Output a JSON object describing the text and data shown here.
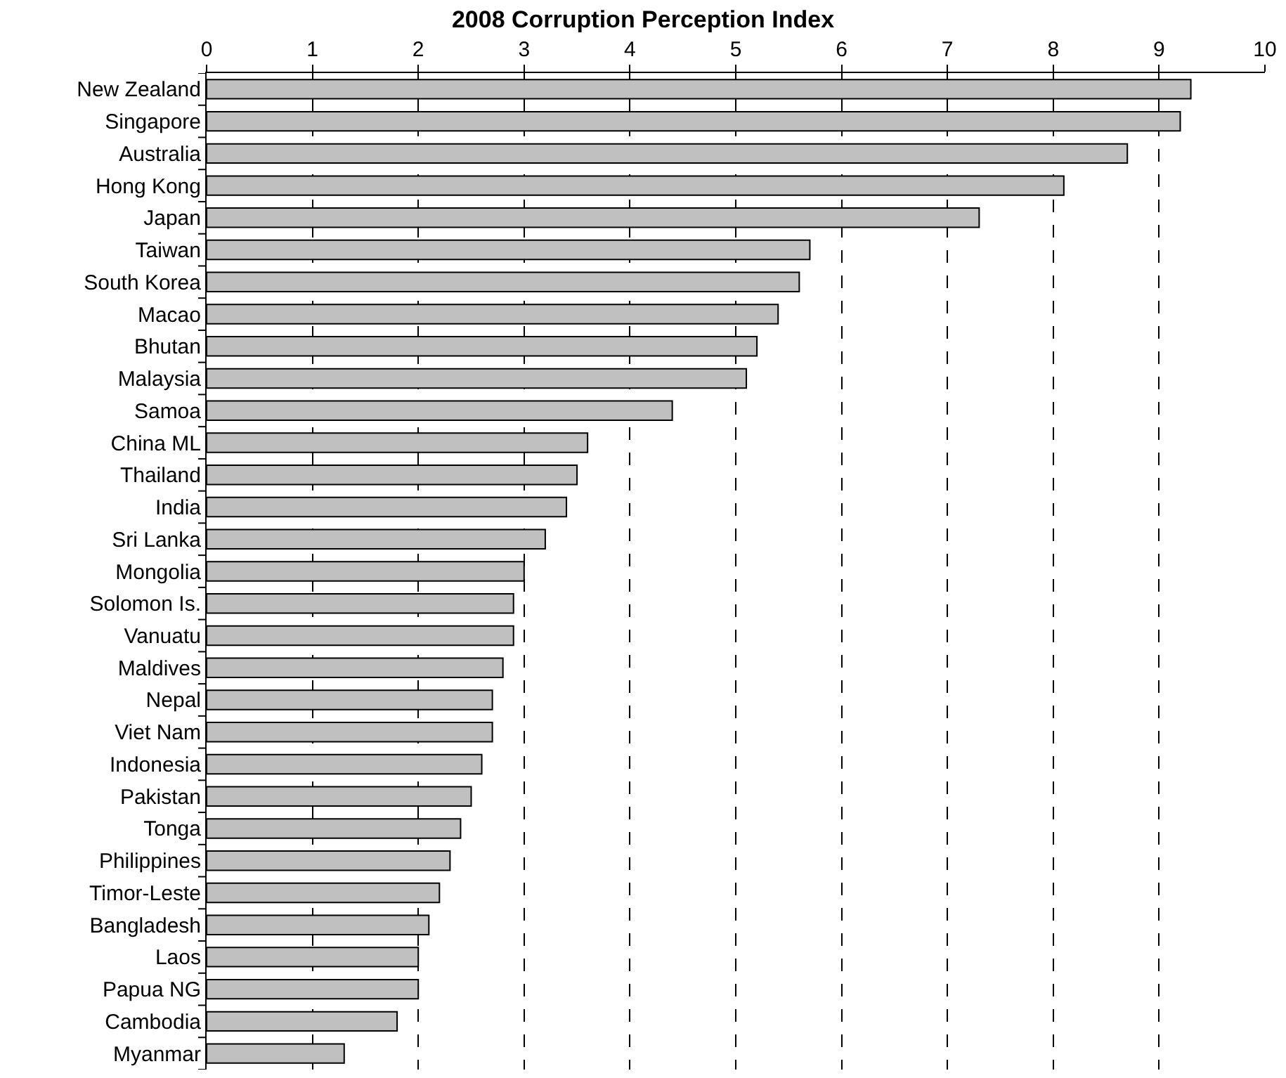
{
  "chart_data": {
    "type": "bar",
    "orientation": "horizontal",
    "title": "2008 Corruption Perception Index",
    "categories": [
      "New Zealand",
      "Singapore",
      "Australia",
      "Hong Kong",
      "Japan",
      "Taiwan",
      "South Korea",
      "Macao",
      "Bhutan",
      "Malaysia",
      "Samoa",
      "China ML",
      "Thailand",
      "India",
      "Sri Lanka",
      "Mongolia",
      "Solomon Is.",
      "Vanuatu",
      "Maldives",
      "Nepal",
      "Viet Nam",
      "Indonesia",
      "Pakistan",
      "Tonga",
      "Philippines",
      "Timor-Leste",
      "Bangladesh",
      "Laos",
      "Papua NG",
      "Cambodia",
      "Myanmar"
    ],
    "values": [
      9.3,
      9.2,
      8.7,
      8.1,
      7.3,
      5.7,
      5.6,
      5.4,
      5.2,
      5.1,
      4.4,
      3.6,
      3.5,
      3.4,
      3.2,
      3.0,
      2.9,
      2.9,
      2.8,
      2.7,
      2.7,
      2.6,
      2.5,
      2.4,
      2.3,
      2.2,
      2.1,
      2.0,
      2.0,
      1.8,
      1.3
    ],
    "color": "#c0c0c0",
    "xlim": [
      0,
      10
    ],
    "xticks": [
      0,
      1,
      2,
      3,
      4,
      5,
      6,
      7,
      8,
      9,
      10
    ],
    "grid": "x"
  }
}
